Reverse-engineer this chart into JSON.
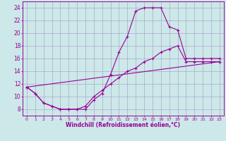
{
  "xlabel": "Windchill (Refroidissement éolien,°C)",
  "bg_color": "#cce8e8",
  "line_color": "#990099",
  "grid_color": "#aaaacc",
  "xlim": [
    -0.5,
    23.5
  ],
  "ylim": [
    7,
    25
  ],
  "xticks": [
    0,
    1,
    2,
    3,
    4,
    5,
    6,
    7,
    8,
    9,
    10,
    11,
    12,
    13,
    14,
    15,
    16,
    17,
    18,
    19,
    20,
    21,
    22,
    23
  ],
  "yticks": [
    8,
    10,
    12,
    14,
    16,
    18,
    20,
    22,
    24
  ],
  "curve1_x": [
    0,
    1,
    2,
    3,
    4,
    5,
    6,
    7,
    8,
    9,
    10,
    11,
    12,
    13,
    14,
    15,
    16,
    17,
    18,
    19,
    20,
    21,
    22,
    23
  ],
  "curve1_y": [
    11.5,
    10.5,
    9.0,
    8.5,
    8.0,
    8.0,
    8.0,
    8.0,
    9.5,
    10.5,
    13.5,
    17.0,
    19.5,
    23.5,
    24.0,
    24.0,
    24.0,
    21.0,
    20.5,
    16.0,
    16.0,
    16.0,
    16.0,
    16.0
  ],
  "curve2_x": [
    0,
    1,
    2,
    3,
    4,
    5,
    6,
    7,
    8,
    9,
    10,
    11,
    12,
    13,
    14,
    15,
    16,
    17,
    18,
    19,
    20,
    21,
    22,
    23
  ],
  "curve2_y": [
    11.5,
    10.5,
    9.0,
    8.5,
    8.0,
    8.0,
    8.0,
    8.5,
    10.0,
    11.0,
    12.0,
    13.0,
    14.0,
    14.5,
    15.5,
    16.0,
    17.0,
    17.5,
    18.0,
    15.5,
    15.5,
    15.5,
    15.5,
    15.5
  ],
  "curve3_x": [
    0,
    23
  ],
  "curve3_y": [
    11.5,
    15.5
  ]
}
